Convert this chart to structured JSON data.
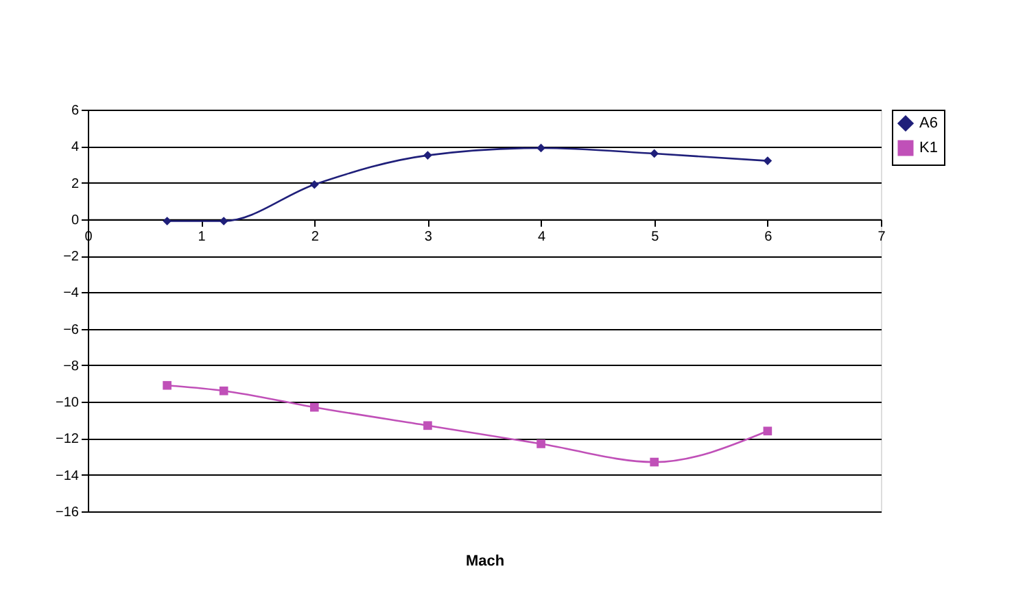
{
  "chart_data": {
    "type": "line",
    "xlabel": "Mach",
    "x": [
      0.7,
      1.2,
      2,
      3,
      4,
      5,
      6
    ],
    "series": [
      {
        "name": "A6",
        "color": "#1f1f7a",
        "marker": "diamond",
        "values": [
          -0.1,
          -0.1,
          1.9,
          3.5,
          3.9,
          3.6,
          3.2
        ]
      },
      {
        "name": "K1",
        "color": "#c050b8",
        "marker": "square",
        "values": [
          -9.1,
          -9.4,
          -10.3,
          -11.3,
          -12.3,
          -13.3,
          -11.6
        ]
      }
    ],
    "xlim": [
      0,
      7
    ],
    "xticks": [
      0,
      1,
      2,
      3,
      4,
      5,
      6,
      7
    ],
    "ylim": [
      -16,
      6
    ],
    "yticks": [
      -16,
      -14,
      -12,
      -10,
      -8,
      -6,
      -4,
      -2,
      0,
      2,
      4,
      6
    ],
    "grid": "y",
    "legend": "right",
    "line_style": "solid"
  }
}
